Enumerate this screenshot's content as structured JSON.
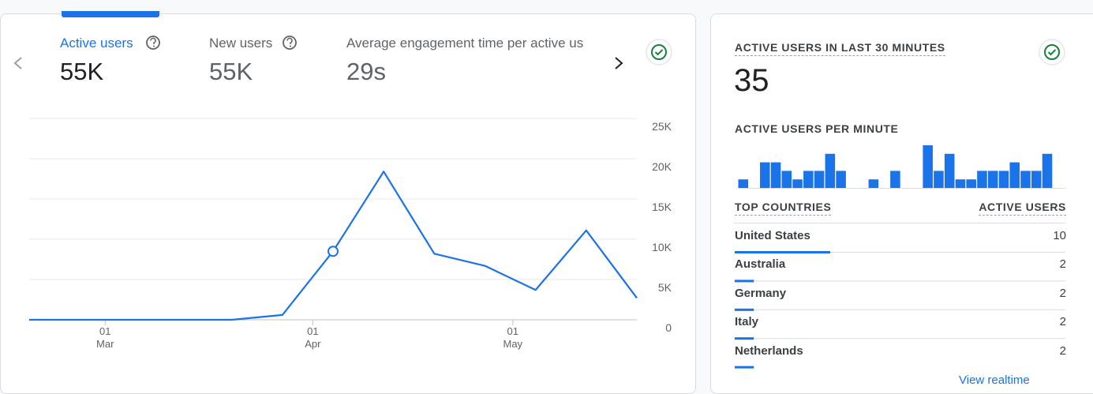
{
  "metrics": [
    {
      "label": "Active users",
      "value": "55K"
    },
    {
      "label": "New users",
      "value": "55K"
    },
    {
      "label": "Average engagement time per active us",
      "value": "29s"
    }
  ],
  "realtime": {
    "title": "ACTIVE USERS IN LAST 30 MINUTES",
    "value": "35",
    "per_minute_title": "ACTIVE USERS PER MINUTE",
    "table_header": [
      "TOP COUNTRIES",
      "ACTIVE USERS"
    ],
    "countries": [
      {
        "name": "United States",
        "value": 10
      },
      {
        "name": "Australia",
        "value": 2
      },
      {
        "name": "Germany",
        "value": 2
      },
      {
        "name": "Italy",
        "value": 2
      },
      {
        "name": "Netherlands",
        "value": 2
      }
    ],
    "link": "View realtime"
  },
  "chart_data": [
    {
      "type": "line",
      "categories": [
        null,
        null,
        null,
        null,
        null,
        null,
        null,
        null,
        null,
        null,
        null,
        null,
        null
      ],
      "values": [
        0,
        0,
        0,
        0,
        0,
        600,
        8500,
        18400,
        8200,
        6700,
        3700,
        11100,
        2700
      ],
      "color": "#1a73e8",
      "highlighted_point": 6,
      "ylim": [
        0,
        25000
      ],
      "yticks": [
        0,
        {
          "value": 5000,
          "label": "5K"
        },
        {
          "value": 10000,
          "label": "10K"
        },
        {
          "value": 15000,
          "label": "15K"
        },
        {
          "value": 20000,
          "label": "20K"
        },
        {
          "value": 25000,
          "label": "25K"
        }
      ],
      "xticks": [
        {
          "value": 1.5,
          "label": [
            "01",
            "Mar"
          ]
        },
        {
          "value": 5.6,
          "label": [
            "01",
            "Apr"
          ]
        },
        {
          "value": 9.55,
          "label": [
            "01",
            "May"
          ]
        }
      ],
      "grid": true
    },
    {
      "type": "bar",
      "categories": [
        null,
        null,
        null,
        null,
        null,
        null,
        null,
        null,
        null,
        null,
        null,
        null,
        null,
        null,
        null,
        null,
        null,
        null,
        null,
        null,
        null,
        null,
        null,
        null,
        null,
        null,
        null,
        null,
        null
      ],
      "values": [
        1,
        0,
        3,
        3,
        2,
        1,
        2,
        2,
        4,
        2,
        0,
        0,
        1,
        0,
        2,
        0,
        0,
        5,
        2,
        4,
        1,
        1,
        2,
        2,
        2,
        3,
        2,
        2,
        4
      ],
      "color": "#1a73e8",
      "ylim": [
        0,
        5
      ]
    }
  ]
}
